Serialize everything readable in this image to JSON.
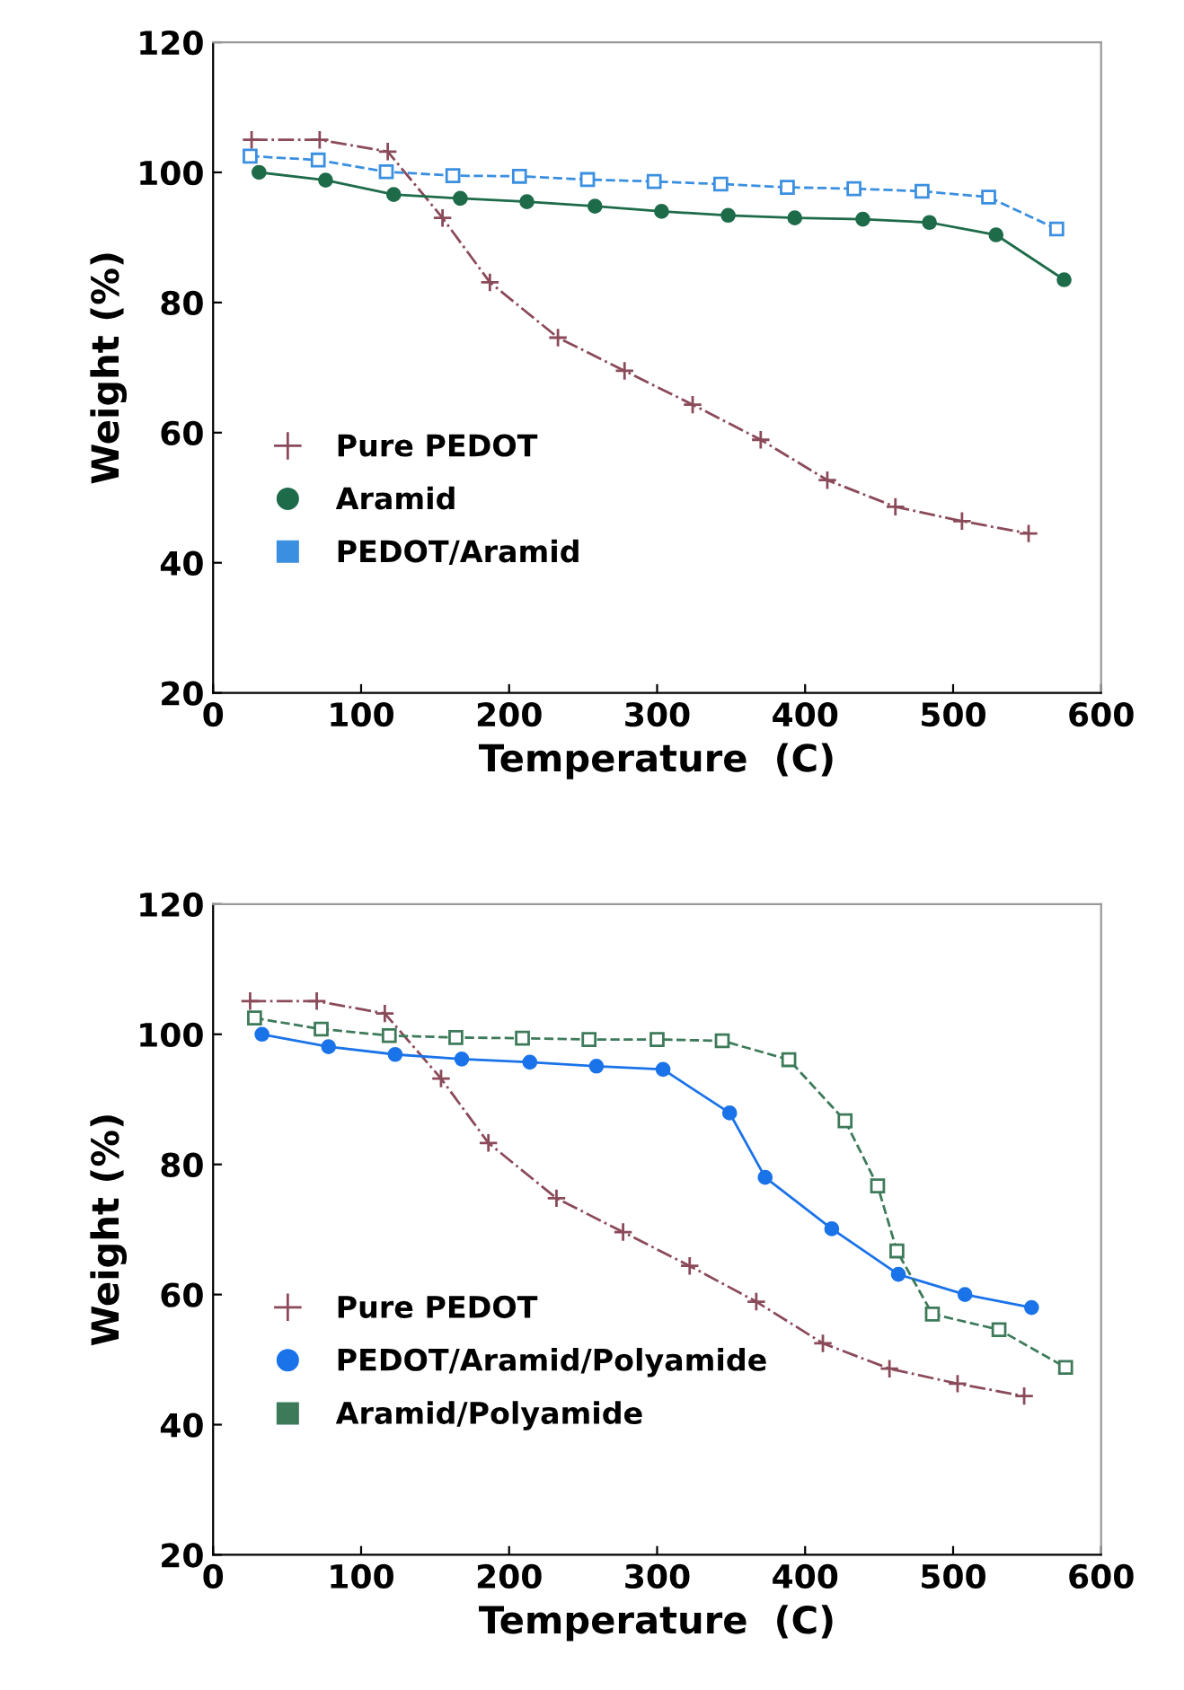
{
  "chart_data": [
    {
      "type": "line",
      "xlabel": "Temperature  (C)",
      "ylabel": "Weight (%)",
      "xlim": [
        0,
        600
      ],
      "ylim": [
        20,
        120
      ],
      "xticks": [
        0,
        100,
        200,
        300,
        400,
        500,
        600
      ],
      "yticks": [
        20,
        40,
        60,
        80,
        100,
        120
      ],
      "grid": false,
      "legend": "lower left",
      "series": [
        {
          "name": "Pure PEDOT",
          "color": "#8b4a5a",
          "marker": "cross",
          "line_style": "dashdot",
          "x": [
            26,
            72,
            118,
            155,
            187,
            233,
            278,
            324,
            370,
            415,
            461,
            506,
            551
          ],
          "values": [
            105,
            105,
            103.2,
            93,
            83.1,
            74.6,
            69.5,
            64.3,
            58.9,
            52.7,
            48.6,
            46.4,
            44.5
          ]
        },
        {
          "name": "Aramid",
          "color": "#1e6b4a",
          "marker": "circle",
          "line_style": "solid",
          "x": [
            31,
            76,
            122,
            167,
            212,
            258,
            303,
            348,
            393,
            439,
            484,
            529,
            575
          ],
          "values": [
            100,
            98.8,
            96.6,
            96,
            95.5,
            94.8,
            94,
            93.4,
            93,
            92.8,
            92.3,
            90.4,
            83.5
          ]
        },
        {
          "name": "PEDOT/Aramid",
          "color": "#3a8fe0",
          "marker": "square",
          "line_style": "dashed",
          "x": [
            25,
            71,
            117,
            162,
            207,
            253,
            298,
            343,
            388,
            433,
            479,
            524,
            570
          ],
          "values": [
            102.5,
            101.9,
            100.1,
            99.5,
            99.4,
            98.9,
            98.6,
            98.2,
            97.7,
            97.5,
            97.1,
            96.2,
            91.3
          ]
        }
      ]
    },
    {
      "type": "line",
      "xlabel": "Temperature  (C)",
      "ylabel": "Weight (%)",
      "xlim": [
        0,
        600
      ],
      "ylim": [
        20,
        120
      ],
      "xticks": [
        0,
        100,
        200,
        300,
        400,
        500,
        600
      ],
      "yticks": [
        20,
        40,
        60,
        80,
        100,
        120
      ],
      "grid": false,
      "legend": "lower left",
      "series": [
        {
          "name": "Pure PEDOT",
          "color": "#8b4a5a",
          "marker": "cross",
          "line_style": "dashdot",
          "x": [
            25,
            70,
            116,
            154,
            186,
            232,
            277,
            322,
            367,
            412,
            457,
            503,
            548
          ],
          "values": [
            105.1,
            105.1,
            103.2,
            93.2,
            83.3,
            74.8,
            69.6,
            64.4,
            58.9,
            52.5,
            48.6,
            46.3,
            44.4
          ]
        },
        {
          "name": "PEDOT/Aramid/Polyamide",
          "color": "#1a73e8",
          "marker": "circle",
          "line_style": "solid",
          "x": [
            33,
            78,
            123,
            168,
            214,
            259,
            304,
            349,
            373,
            418,
            463,
            508,
            553
          ],
          "values": [
            100,
            98.1,
            96.9,
            96.2,
            95.7,
            95.1,
            94.6,
            87.9,
            78,
            70.1,
            63.1,
            60,
            58
          ]
        },
        {
          "name": "Aramid/Polyamide",
          "color": "#3d7a5a",
          "marker": "square",
          "line_style": "dashed",
          "x": [
            28,
            73,
            119,
            164,
            209,
            254,
            300,
            344,
            389,
            427,
            449,
            462,
            486,
            531,
            576
          ],
          "values": [
            102.5,
            100.8,
            99.8,
            99.5,
            99.4,
            99.2,
            99.2,
            99,
            96.1,
            86.7,
            76.7,
            66.7,
            57,
            54.6,
            48.8
          ]
        }
      ]
    }
  ]
}
